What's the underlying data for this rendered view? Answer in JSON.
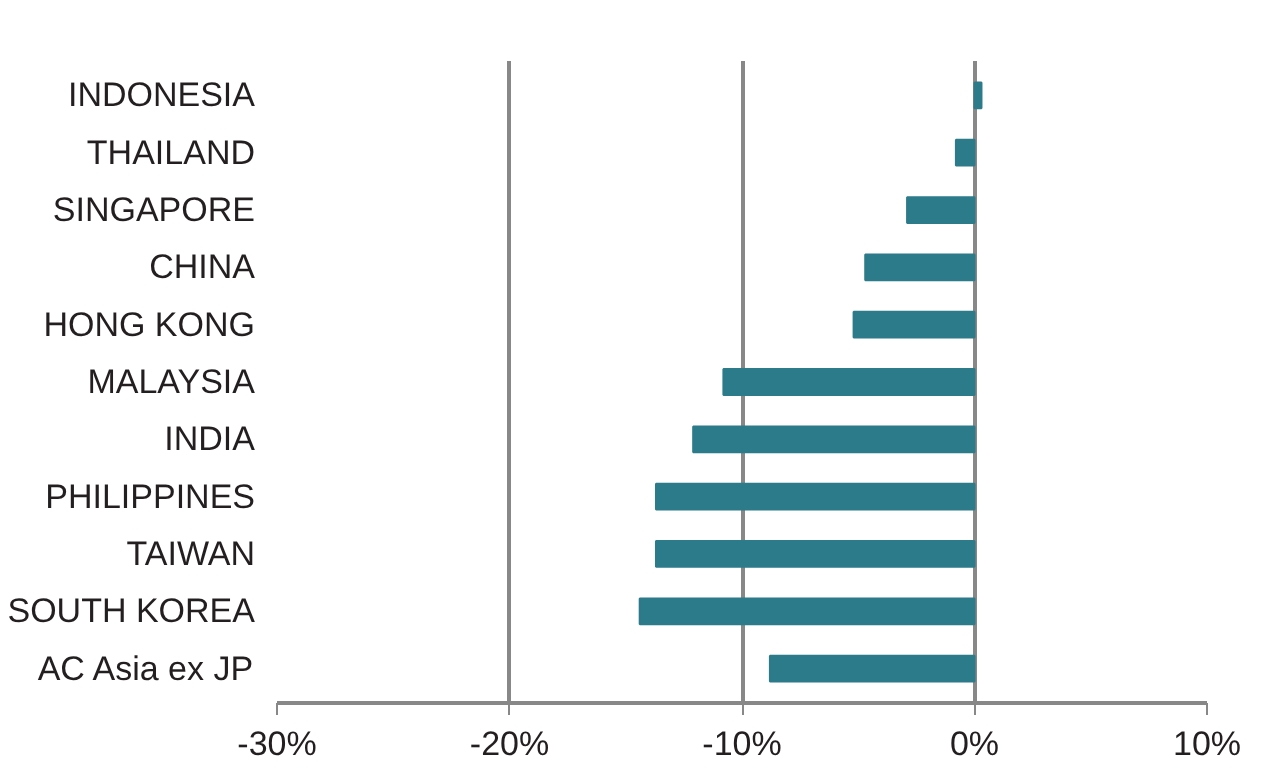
{
  "chart_data": {
    "type": "bar",
    "orientation": "horizontal",
    "categories": [
      "INDONESIA",
      "THAILAND",
      "SINGAPORE",
      "CHINA",
      "HONG KONG",
      "MALAYSIA",
      "INDIA",
      "PHILIPPINES",
      "TAIWAN",
      "SOUTH KOREA",
      "AC Asia ex JP"
    ],
    "values": [
      0.3,
      -0.8,
      -2.9,
      -4.7,
      -5.2,
      -10.8,
      -12.1,
      -13.7,
      -13.7,
      -14.4,
      -8.8
    ],
    "color": "#2c7b8a",
    "xlim": [
      -30,
      10
    ],
    "xticks": [
      {
        "value": -30,
        "label": "-30%"
      },
      {
        "value": -20,
        "label": "-20%"
      },
      {
        "value": -10,
        "label": "-10%"
      },
      {
        "value": 0,
        "label": "0%"
      },
      {
        "value": 10,
        "label": "10%"
      }
    ],
    "grid": "x"
  }
}
